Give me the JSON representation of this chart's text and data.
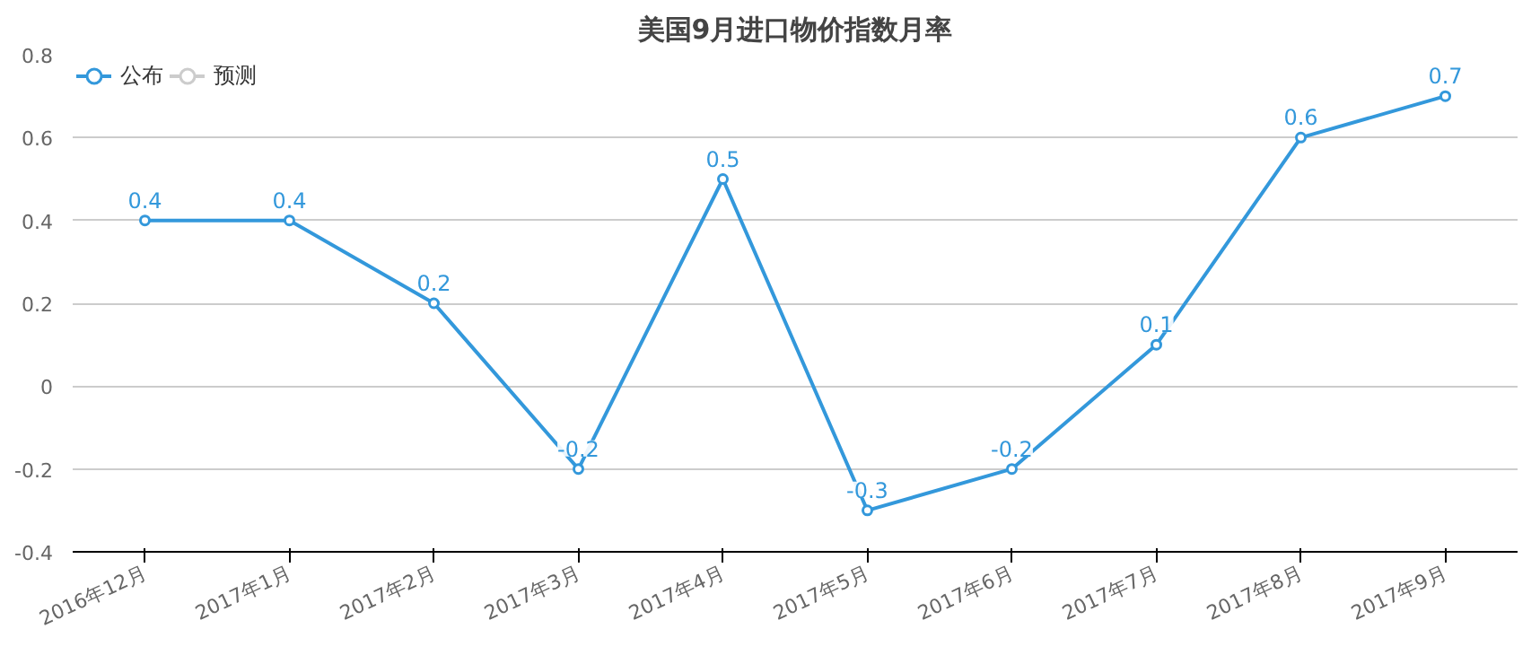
{
  "chart_data": {
    "type": "line",
    "title": "美国9月进口物价指数月率",
    "categories": [
      "2016年12月",
      "2017年1月",
      "2017年2月",
      "2017年3月",
      "2017年4月",
      "2017年5月",
      "2017年6月",
      "2017年7月",
      "2017年8月",
      "2017年9月"
    ],
    "series": [
      {
        "name": "公布",
        "color": "#3398db",
        "values": [
          0.4,
          0.4,
          0.2,
          -0.2,
          0.5,
          -0.3,
          -0.2,
          0.1,
          0.6,
          0.7
        ]
      },
      {
        "name": "预测",
        "color": "#cccccc",
        "values": [
          null,
          null,
          null,
          null,
          null,
          null,
          null,
          null,
          null,
          null
        ]
      }
    ],
    "ylim": [
      -0.4,
      0.8
    ],
    "yticks": [
      -0.4,
      -0.2,
      0,
      0.2,
      0.4,
      0.6,
      0.8
    ],
    "grid": "y",
    "legend": "top left",
    "marker": "circle",
    "line_style": "solid",
    "data_labels": true
  }
}
